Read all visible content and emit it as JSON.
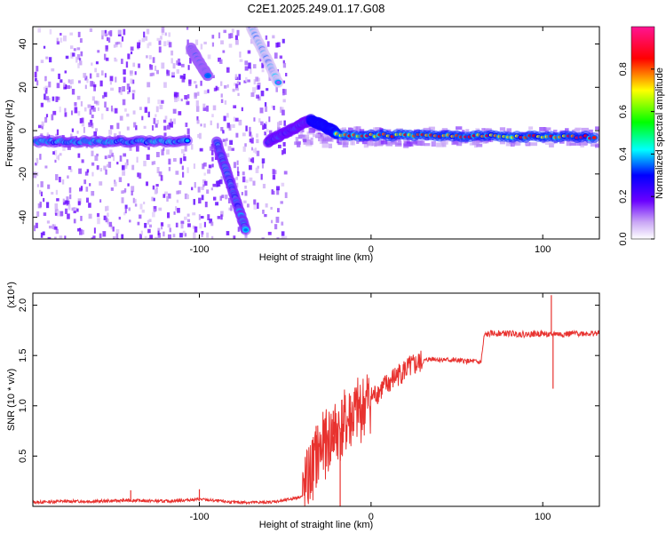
{
  "title": "C2E1.2025.249.01.17.G08",
  "chart_data": [
    {
      "type": "heatmap",
      "xlabel": "Height of straight line (km)",
      "ylabel": "Frequency (Hz)",
      "xlim": [
        -197,
        133
      ],
      "ylim": [
        -50,
        48
      ],
      "xticks": [
        -100,
        0,
        100
      ],
      "xtick_labels": [
        "-100",
        "0",
        "100"
      ],
      "yticks": [
        -40,
        -20,
        0,
        20,
        40
      ],
      "ytick_labels": [
        "-40",
        "-20",
        "0",
        "20",
        "40"
      ],
      "colorbar": {
        "label": "Normalized spectral amplitude",
        "range": [
          0,
          1
        ],
        "ticks": [
          0.0,
          0.2,
          0.4,
          0.6,
          0.8
        ],
        "tick_labels": [
          "0.0",
          "0.2",
          "0.4",
          "0.6",
          "0.8"
        ],
        "colormap": [
          "#ffffff",
          "#8a2be2",
          "#0000ff",
          "#00ffff",
          "#00ff00",
          "#ffff00",
          "#ff0000",
          "#ff1493"
        ]
      },
      "features": [
        {
          "x": [
            -195,
            -107
          ],
          "y": [
            -5,
            -5
          ],
          "peak": 0.45
        },
        {
          "x": [
            -105,
            -95
          ],
          "y": [
            38,
            25
          ],
          "peak": 0.35
        },
        {
          "x": [
            -90,
            -73
          ],
          "y": [
            -5,
            -46
          ],
          "peak": 0.45
        },
        {
          "x": [
            -70,
            -54
          ],
          "y": [
            48,
            22
          ],
          "peak": 0.15
        },
        {
          "x": [
            -60,
            -35
          ],
          "y": [
            -5,
            5
          ],
          "peak": 0.5
        },
        {
          "x": [
            -35,
            -20
          ],
          "y": [
            5,
            -1
          ],
          "peak": 0.8
        },
        {
          "x": [
            -20,
            130
          ],
          "y": [
            -2,
            -3
          ],
          "peak": 0.9
        }
      ],
      "grid": false
    },
    {
      "type": "line",
      "xlabel": "Height of straight line (km)",
      "ylabel": "SNR (10 * v/v)",
      "multiplier": "(x10⁴)",
      "xlim": [
        -197,
        133
      ],
      "ylim": [
        0,
        2.12
      ],
      "xticks": [
        -100,
        0,
        100
      ],
      "xtick_labels": [
        "-100",
        "0",
        "100"
      ],
      "yticks": [
        0.5,
        1.0,
        1.5,
        2.0
      ],
      "ytick_labels": [
        "0.5",
        "1.0",
        "1.5",
        "2.0"
      ],
      "color": "#e8322f",
      "x": [
        -197,
        -180,
        -160,
        -140,
        -120,
        -100,
        -80,
        -60,
        -50,
        -40,
        -35,
        -30,
        -25,
        -20,
        -15,
        -10,
        -5,
        0,
        5,
        10,
        15,
        20,
        25,
        30,
        35,
        40,
        50,
        60,
        64,
        66,
        70,
        80,
        90,
        100,
        105,
        107,
        110,
        120,
        133
      ],
      "y": [
        0.04,
        0.05,
        0.05,
        0.06,
        0.05,
        0.07,
        0.04,
        0.04,
        0.06,
        0.1,
        0.35,
        0.55,
        0.65,
        0.75,
        0.82,
        0.9,
        0.98,
        1.08,
        1.15,
        1.22,
        1.3,
        1.36,
        1.4,
        1.44,
        1.47,
        1.46,
        1.45,
        1.44,
        1.43,
        1.7,
        1.72,
        1.72,
        1.71,
        1.72,
        1.7,
        1.72,
        1.71,
        1.72,
        1.72
      ],
      "spikes": [
        {
          "x": -140,
          "y": 0.16
        },
        {
          "x": -100,
          "y": 0.17
        },
        {
          "x": -32,
          "y": 0.8
        },
        {
          "x": -22,
          "y": 0.95
        },
        {
          "x": -18,
          "y": 0.0
        },
        {
          "x": -12,
          "y": 1.1
        },
        {
          "x": 105,
          "y": 2.1
        },
        {
          "x": 106,
          "y": 1.17
        }
      ],
      "grid": false
    }
  ]
}
